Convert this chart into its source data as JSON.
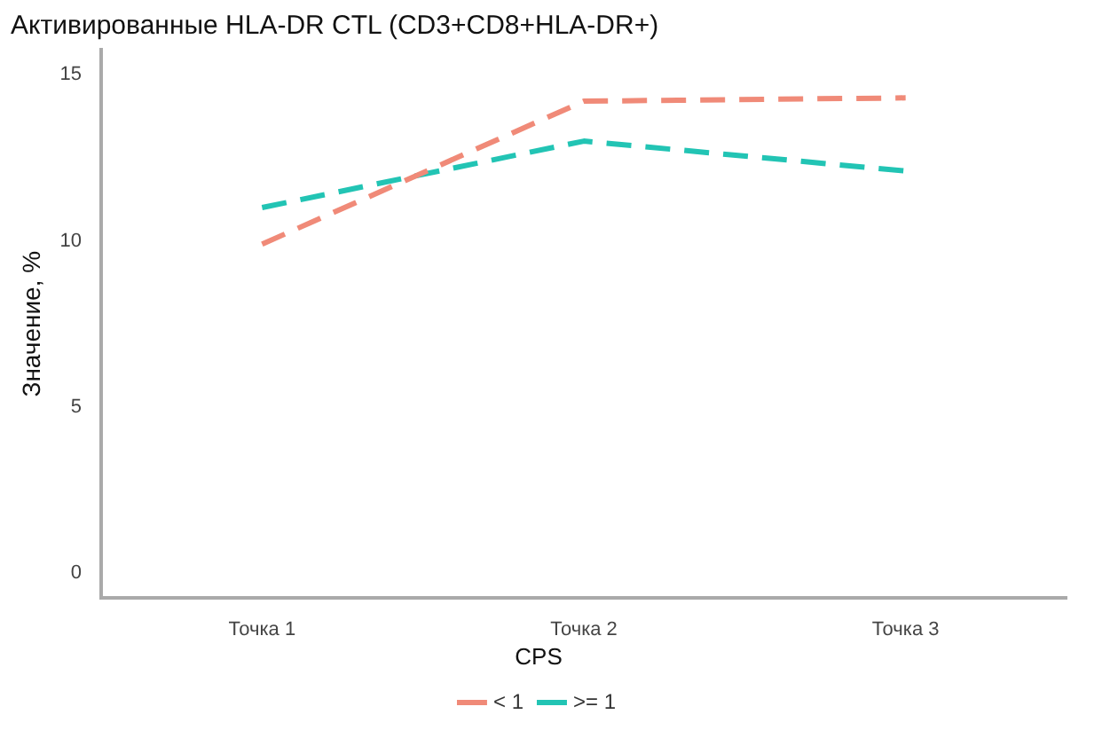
{
  "chart_data": {
    "type": "line",
    "title": "Активированные HLA-DR CTL (CD3+CD8+HLA-DR+)",
    "ylabel": "Значение, %",
    "legend_title": "CPS",
    "categories": [
      "Точка 1",
      "Точка 2",
      "Точка 3"
    ],
    "series": [
      {
        "name": "< 1",
        "color": "#f08a78",
        "values": [
          9.9,
          14.2,
          14.3
        ]
      },
      {
        "name": ">= 1",
        "color": "#22c4b4",
        "values": [
          11.0,
          13.0,
          12.1
        ]
      }
    ],
    "ylim": [
      -0.75,
      15.75
    ],
    "yticks": [
      0,
      5,
      10,
      15
    ],
    "grid": false,
    "legend": "bottom",
    "marker": "none",
    "line_style": "dashed"
  }
}
